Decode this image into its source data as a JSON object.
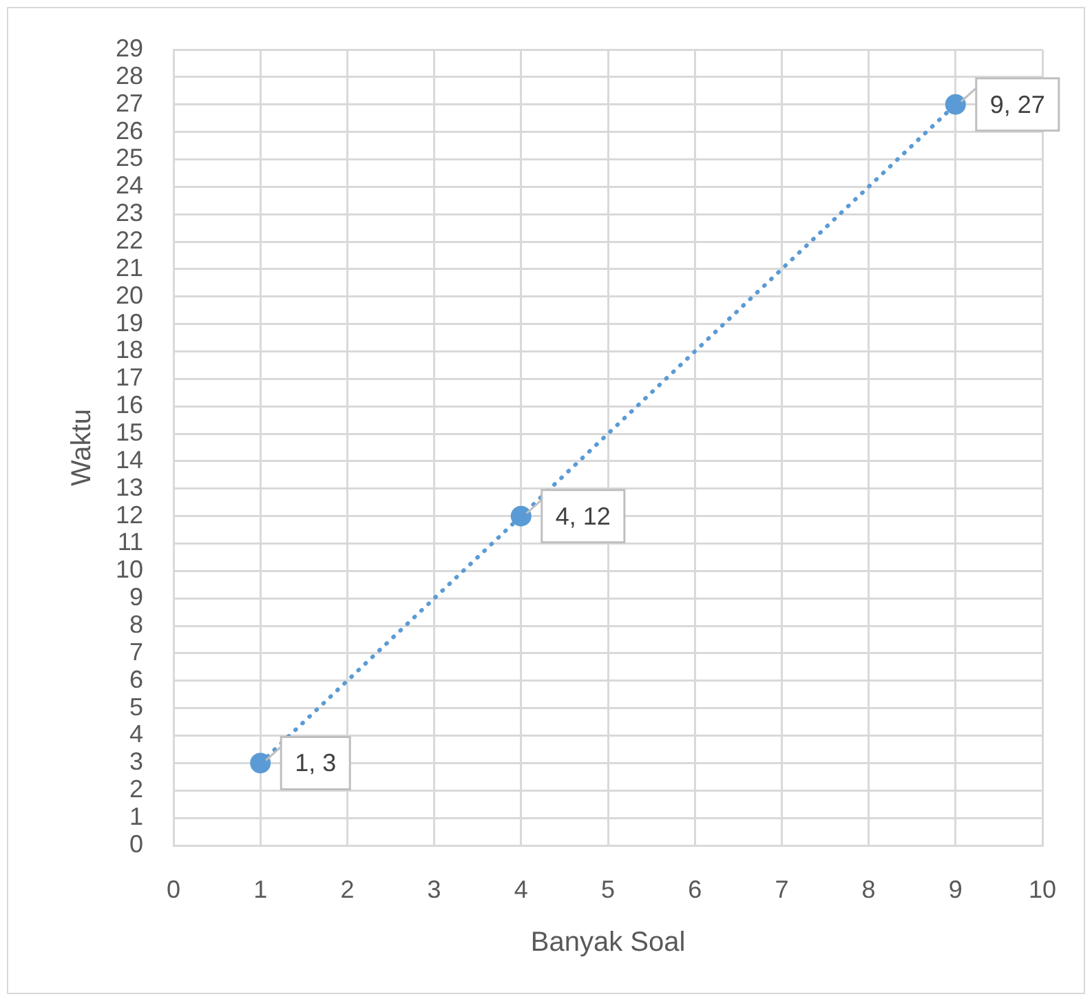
{
  "chart_data": {
    "type": "line",
    "xlabel": "Banyak Soal",
    "ylabel": "Waktu",
    "x": [
      1,
      4,
      9
    ],
    "series": [
      {
        "color": "#5b9bd5",
        "values": [
          3,
          12,
          27
        ],
        "value_labels": [
          "1, 3",
          "4, 12",
          "9, 27"
        ]
      }
    ],
    "xlim": [
      0,
      10
    ],
    "xticks": [
      0,
      1,
      2,
      3,
      4,
      5,
      6,
      7,
      8,
      9,
      10
    ],
    "ylim": [
      0,
      29
    ],
    "yticks": [
      0,
      1,
      2,
      3,
      4,
      5,
      6,
      7,
      8,
      9,
      10,
      11,
      12,
      13,
      14,
      15,
      16,
      17,
      18,
      19,
      20,
      21,
      22,
      23,
      24,
      25,
      26,
      27,
      28,
      29
    ],
    "grid": true,
    "legend": false,
    "marker": "circle",
    "line_style": "dotted"
  }
}
